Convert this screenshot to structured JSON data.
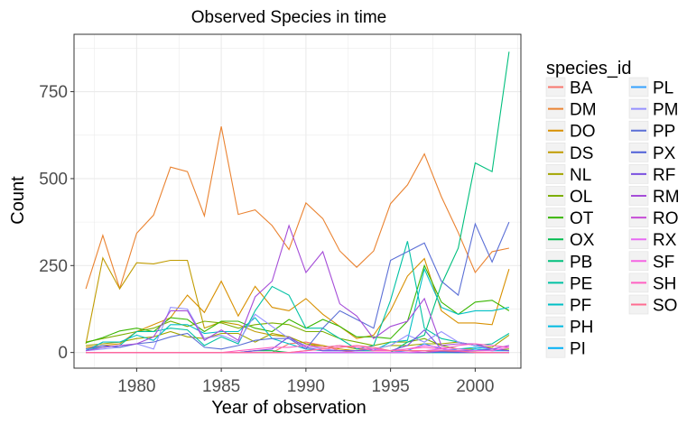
{
  "chart_data": {
    "type": "line",
    "title": "Observed Species in time",
    "xlabel": "Year of observation",
    "ylabel": "Count",
    "xlim": [
      1976.3,
      2002.7
    ],
    "ylim": [
      -45,
      915
    ],
    "xticks": [
      1980,
      1985,
      1990,
      1995,
      2000
    ],
    "yticks": [
      0,
      250,
      500,
      750
    ],
    "grid": true,
    "legend_title": "species_id",
    "legend_position": "right",
    "x": [
      1977,
      1978,
      1979,
      1980,
      1981,
      1982,
      1983,
      1984,
      1985,
      1986,
      1987,
      1988,
      1989,
      1990,
      1991,
      1992,
      1993,
      1994,
      1995,
      1996,
      1997,
      1998,
      1999,
      2000,
      2001,
      2002
    ],
    "series": [
      {
        "name": "BA",
        "color": "#F8766D",
        "values": [
          0,
          0,
          0,
          0,
          0,
          0,
          0,
          0,
          0,
          0,
          0,
          0,
          25,
          30,
          20,
          5,
          0,
          0,
          0,
          0,
          0,
          0,
          0,
          0,
          0,
          0
        ]
      },
      {
        "name": "DM",
        "color": "#EA8331",
        "values": [
          183,
          337,
          184,
          343,
          395,
          533,
          520,
          393,
          650,
          397,
          410,
          365,
          296,
          430,
          385,
          292,
          245,
          292,
          428,
          482,
          571,
          448,
          345,
          230,
          290,
          300
        ]
      },
      {
        "name": "DO",
        "color": "#D89000",
        "values": [
          15,
          20,
          25,
          60,
          80,
          100,
          165,
          115,
          205,
          105,
          190,
          130,
          120,
          155,
          110,
          75,
          40,
          50,
          120,
          220,
          270,
          120,
          85,
          85,
          80,
          240
        ]
      },
      {
        "name": "DS",
        "color": "#C09B00",
        "values": [
          25,
          272,
          183,
          258,
          255,
          265,
          265,
          70,
          88,
          80,
          60,
          50,
          45,
          25,
          20,
          10,
          5,
          5,
          5,
          5,
          5,
          3,
          2,
          1,
          0,
          0
        ]
      },
      {
        "name": "NL",
        "color": "#A3A500",
        "values": [
          20,
          25,
          30,
          40,
          45,
          60,
          45,
          40,
          55,
          55,
          30,
          55,
          45,
          25,
          15,
          20,
          10,
          10,
          20,
          20,
          25,
          25,
          30,
          20,
          15,
          50
        ]
      },
      {
        "name": "OL",
        "color": "#7CAE00",
        "values": [
          30,
          40,
          50,
          60,
          70,
          90,
          75,
          90,
          85,
          70,
          80,
          85,
          80,
          60,
          60,
          40,
          30,
          20,
          30,
          30,
          40,
          20,
          10,
          10,
          5,
          10
        ]
      },
      {
        "name": "OT",
        "color": "#39B600",
        "values": [
          28,
          43,
          62,
          70,
          60,
          100,
          95,
          60,
          90,
          90,
          70,
          60,
          95,
          70,
          95,
          75,
          45,
          45,
          40,
          90,
          250,
          145,
          110,
          145,
          150,
          120
        ]
      },
      {
        "name": "OX",
        "color": "#00BB4E",
        "values": [
          0,
          0,
          0,
          0,
          0,
          0,
          0,
          0,
          0,
          0,
          5,
          5,
          0,
          0,
          0,
          0,
          0,
          0,
          0,
          0,
          0,
          0,
          0,
          0,
          0,
          0
        ]
      },
      {
        "name": "PB",
        "color": "#00BF7D",
        "values": [
          0,
          0,
          0,
          0,
          0,
          0,
          0,
          0,
          0,
          0,
          0,
          0,
          0,
          0,
          0,
          0,
          0,
          0,
          0,
          30,
          50,
          195,
          300,
          545,
          520,
          865
        ]
      },
      {
        "name": "PE",
        "color": "#00C1A3",
        "values": [
          10,
          15,
          20,
          60,
          60,
          70,
          65,
          20,
          45,
          25,
          120,
          190,
          165,
          70,
          70,
          40,
          10,
          20,
          150,
          320,
          70,
          40,
          30,
          20,
          25,
          55
        ]
      },
      {
        "name": "PF",
        "color": "#00BFC4",
        "values": [
          5,
          30,
          30,
          50,
          35,
          80,
          80,
          55,
          60,
          60,
          100,
          40,
          25,
          10,
          5,
          5,
          5,
          5,
          30,
          35,
          240,
          130,
          110,
          120,
          120,
          130
        ]
      },
      {
        "name": "PH",
        "color": "#00BAE0",
        "values": [
          0,
          0,
          0,
          0,
          0,
          0,
          0,
          0,
          0,
          0,
          0,
          0,
          0,
          0,
          0,
          0,
          0,
          0,
          0,
          0,
          0,
          5,
          10,
          15,
          10,
          5
        ]
      },
      {
        "name": "PI",
        "color": "#00B0F6",
        "values": [
          0,
          0,
          0,
          0,
          0,
          0,
          0,
          0,
          0,
          0,
          0,
          0,
          0,
          0,
          0,
          0,
          0,
          0,
          0,
          0,
          0,
          0,
          0,
          10,
          5,
          5
        ]
      },
      {
        "name": "PL",
        "color": "#35A2FF",
        "values": [
          0,
          0,
          0,
          0,
          0,
          0,
          0,
          0,
          0,
          0,
          0,
          0,
          0,
          0,
          0,
          0,
          0,
          0,
          0,
          5,
          25,
          10,
          5,
          0,
          0,
          0
        ]
      },
      {
        "name": "PM",
        "color": "#9590FF",
        "values": [
          5,
          10,
          15,
          25,
          10,
          130,
          125,
          40,
          50,
          30,
          110,
          75,
          40,
          20,
          10,
          5,
          5,
          10,
          20,
          50,
          30,
          60,
          30,
          20,
          10,
          5
        ]
      },
      {
        "name": "PP",
        "color": "#5B6FD6",
        "values": [
          10,
          20,
          15,
          25,
          30,
          45,
          55,
          15,
          10,
          20,
          35,
          40,
          40,
          10,
          70,
          120,
          95,
          70,
          265,
          290,
          315,
          205,
          165,
          370,
          260,
          375
        ]
      },
      {
        "name": "PX",
        "color": "#4E5FD8",
        "values": [
          0,
          0,
          0,
          0,
          0,
          0,
          0,
          0,
          0,
          0,
          0,
          0,
          0,
          0,
          0,
          0,
          0,
          0,
          0,
          0,
          0,
          2,
          0,
          0,
          0,
          0
        ]
      },
      {
        "name": "RF",
        "color": "#7A50E0",
        "values": [
          0,
          0,
          0,
          0,
          0,
          0,
          0,
          0,
          0,
          0,
          5,
          10,
          45,
          15,
          5,
          5,
          5,
          10,
          5,
          20,
          65,
          10,
          5,
          5,
          10,
          5
        ]
      },
      {
        "name": "RM",
        "color": "#A54DD8",
        "values": [
          5,
          15,
          20,
          25,
          45,
          120,
          120,
          35,
          65,
          35,
          160,
          205,
          365,
          230,
          290,
          140,
          105,
          40,
          75,
          90,
          155,
          20,
          25,
          25,
          10,
          20
        ]
      },
      {
        "name": "RO",
        "color": "#C64DD6",
        "values": [
          0,
          0,
          0,
          0,
          0,
          0,
          0,
          0,
          0,
          0,
          0,
          0,
          0,
          0,
          0,
          0,
          0,
          0,
          0,
          0,
          0,
          5,
          3,
          0,
          0,
          0
        ]
      },
      {
        "name": "RX",
        "color": "#E76BF3",
        "values": [
          0,
          0,
          0,
          0,
          0,
          0,
          0,
          0,
          0,
          0,
          0,
          0,
          0,
          0,
          0,
          0,
          0,
          0,
          0,
          0,
          5,
          10,
          5,
          0,
          0,
          0
        ]
      },
      {
        "name": "SF",
        "color": "#F564E3",
        "values": [
          0,
          0,
          0,
          0,
          0,
          0,
          0,
          0,
          0,
          0,
          0,
          0,
          0,
          5,
          10,
          15,
          20,
          10,
          5,
          10,
          20,
          15,
          10,
          5,
          5,
          15
        ]
      },
      {
        "name": "SH",
        "color": "#FF61C3",
        "values": [
          0,
          0,
          0,
          0,
          0,
          0,
          0,
          0,
          0,
          5,
          10,
          15,
          15,
          20,
          15,
          20,
          15,
          5,
          5,
          10,
          15,
          10,
          20,
          25,
          20,
          15
        ]
      },
      {
        "name": "SO",
        "color": "#FF6C91",
        "values": [
          0,
          0,
          0,
          0,
          0,
          0,
          0,
          0,
          0,
          0,
          0,
          0,
          0,
          5,
          10,
          15,
          20,
          15,
          5,
          5,
          5,
          5,
          5,
          0,
          0,
          0
        ]
      }
    ]
  }
}
